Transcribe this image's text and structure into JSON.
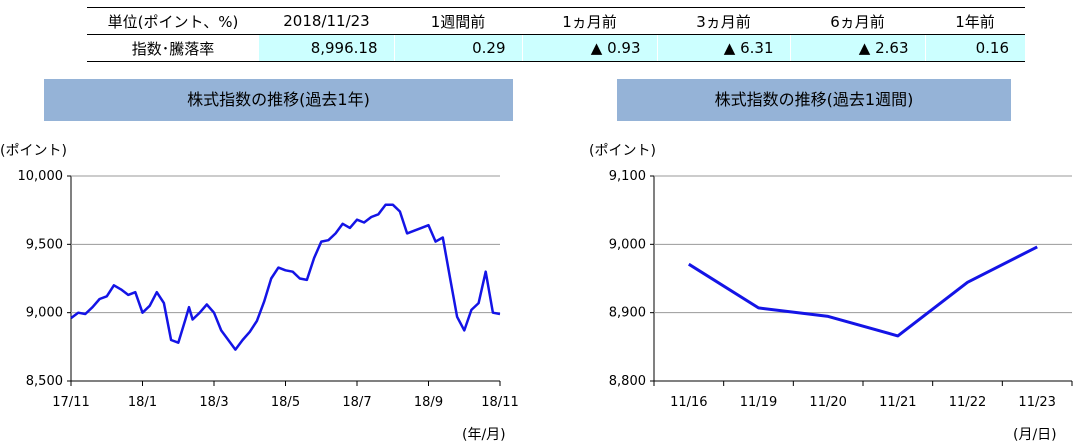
{
  "summary": {
    "headers": [
      "単位(ポイント、%)",
      "2018/11/23",
      "1週間前",
      "1ヵ月前",
      "3ヵ月前",
      "6ヵ月前",
      "1年前"
    ],
    "row_label": "指数･騰落率",
    "values": [
      "8,996.18",
      "0.29",
      "▲ 0.93",
      "▲ 6.31",
      "▲ 2.63",
      "0.16"
    ]
  },
  "colors": {
    "line": "#1414e6",
    "title_bg": "#95b3d7",
    "highlight_bg": "#ccffff",
    "grid": "#999999"
  },
  "chart_data": [
    {
      "type": "line",
      "title": "株式指数の推移(過去1年)",
      "ylabel": "(ポイント)",
      "xlabel": "(年/月)",
      "ylim": [
        8500,
        10000
      ],
      "yticks": [
        8500,
        9000,
        9500,
        10000
      ],
      "ytick_labels": [
        "8,500",
        "9,000",
        "9,500",
        "10,000"
      ],
      "xtick_labels": [
        "17/11",
        "18/1",
        "18/3",
        "18/5",
        "18/7",
        "18/9",
        "18/11"
      ],
      "grid": true,
      "series": [
        {
          "x": [
            0,
            0.1,
            0.2,
            0.3,
            0.4,
            0.5,
            0.6,
            0.7,
            0.8,
            0.9,
            1.0,
            1.1,
            1.2,
            1.3,
            1.4,
            1.5,
            1.6,
            1.65,
            1.7,
            1.8,
            1.9,
            2.0,
            2.1,
            2.2,
            2.3,
            2.4,
            2.5,
            2.6,
            2.7,
            2.8,
            2.9,
            3.0,
            3.1,
            3.2,
            3.3,
            3.4,
            3.5,
            3.6,
            3.7,
            3.8,
            3.9,
            4.0,
            4.1,
            4.2,
            4.3,
            4.4,
            4.5,
            4.6,
            4.7,
            4.8,
            4.9,
            5.0,
            5.1,
            5.2,
            5.3,
            5.4,
            5.5,
            5.6,
            5.7,
            5.8,
            5.9,
            6.0
          ],
          "y": [
            8960,
            9000,
            8990,
            9040,
            9100,
            9120,
            9200,
            9170,
            9130,
            9150,
            9000,
            9050,
            9150,
            9070,
            8800,
            8780,
            8950,
            9040,
            8950,
            9000,
            9060,
            9000,
            8870,
            8800,
            8730,
            8800,
            8860,
            8940,
            9080,
            9250,
            9330,
            9310,
            9300,
            9250,
            9240,
            9400,
            9520,
            9530,
            9580,
            9650,
            9620,
            9680,
            9660,
            9700,
            9720,
            9790,
            9790,
            9740,
            9580,
            9600,
            9620,
            9640,
            9520,
            9550,
            9260,
            8970,
            8870,
            9020,
            9070,
            9300,
            9000,
            8990
          ]
        }
      ]
    },
    {
      "type": "line",
      "title": "株式指数の推移(過去1週間)",
      "ylabel": "(ポイント)",
      "xlabel": "(月/日)",
      "ylim": [
        8800,
        9100
      ],
      "yticks": [
        8800,
        8900,
        9000,
        9100
      ],
      "ytick_labels": [
        "8,800",
        "8,900",
        "9,000",
        "9,100"
      ],
      "categories": [
        "11/16",
        "11/19",
        "11/20",
        "11/21",
        "11/22",
        "11/23"
      ],
      "grid": true,
      "series": [
        {
          "values": [
            8970.9,
            8907.0,
            8894.6,
            8866.0,
            8944.5,
            8996.2
          ]
        }
      ]
    }
  ]
}
